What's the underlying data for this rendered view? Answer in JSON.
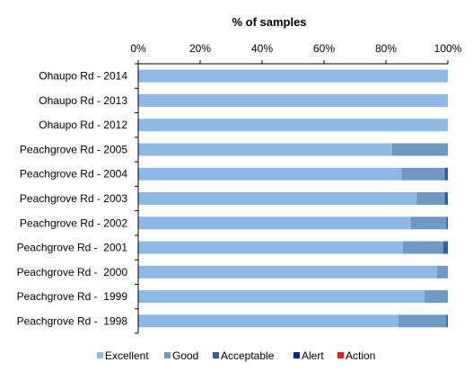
{
  "chart_data": {
    "type": "bar",
    "orientation": "horizontal",
    "stacked": true,
    "title": "% of samples",
    "xlabel": "",
    "ylabel": "",
    "xlim": [
      0,
      100
    ],
    "x_ticks": [
      "0%",
      "20%",
      "40%",
      "60%",
      "80%",
      "100%"
    ],
    "x_axis_position": "top",
    "grid": false,
    "legend_position": "bottom",
    "categories": [
      "Ohaupo Rd - 2014",
      "Ohaupo Rd - 2013",
      "Ohaupo Rd - 2012",
      "Peachgrove Rd - 2005",
      "Peachgrove Rd - 2004",
      "Peachgrove Rd - 2003",
      "Peachgrove Rd - 2002",
      "Peachgrove Rd -  2001",
      "Peachgrove Rd -  2000",
      "Peachgrove Rd -  1999",
      "Peachgrove Rd -  1998"
    ],
    "series": [
      {
        "name": "Excellent",
        "color": "#8DB9E6",
        "values": [
          100,
          100,
          100,
          82,
          85,
          90,
          88,
          85.5,
          96.5,
          92.5,
          84
        ]
      },
      {
        "name": "Good",
        "color": "#6F99C4",
        "values": [
          0,
          0,
          0,
          18,
          14,
          9,
          11.5,
          13,
          3.5,
          7.5,
          15.5
        ]
      },
      {
        "name": "Acceptable",
        "color": "#2F5FA0",
        "values": [
          0,
          0,
          0,
          0,
          1,
          1,
          0.5,
          1.5,
          0,
          0,
          0.5
        ]
      },
      {
        "name": "Alert",
        "color": "#0A2896",
        "values": [
          0,
          0,
          0,
          0,
          0,
          0,
          0,
          0,
          0,
          0,
          0
        ]
      },
      {
        "name": "Action",
        "color": "#E61E1E",
        "values": [
          0,
          0,
          0,
          0,
          0,
          0,
          0,
          0,
          0,
          0,
          0
        ]
      }
    ]
  }
}
